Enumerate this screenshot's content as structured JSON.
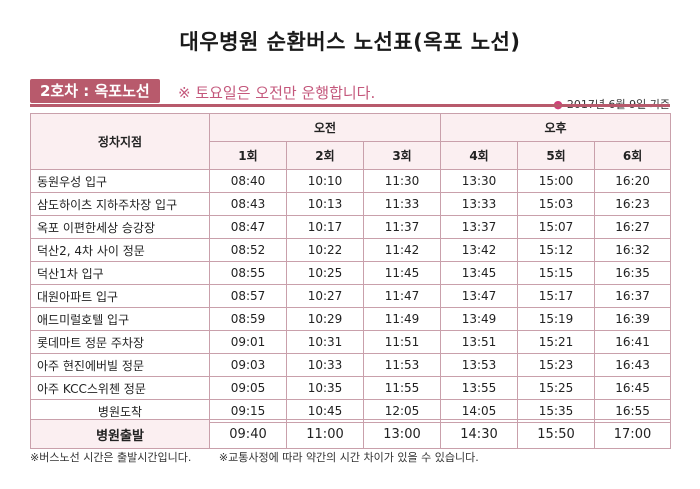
{
  "title": "대우병원 순환버스 노선표(옥포 노선)",
  "route_badge": "2호차 : 옥포노선",
  "notice": "※ 토요일은 오전만 운행합니다.",
  "basis_date": "2017년 6월 9일 기준",
  "table": {
    "stop_header": "정차지점",
    "am_label": "오전",
    "pm_label": "오후",
    "trips": [
      "1회",
      "2회",
      "3회",
      "4회",
      "5회",
      "6회"
    ],
    "rows": [
      {
        "stop": "동원우성 입구",
        "times": [
          "08:40",
          "10:10",
          "11:30",
          "13:30",
          "15:00",
          "16:20"
        ]
      },
      {
        "stop": "삼도하이츠 지하주차장 입구",
        "times": [
          "08:43",
          "10:13",
          "11:33",
          "13:33",
          "15:03",
          "16:23"
        ]
      },
      {
        "stop": "옥포 이편한세상 승강장",
        "times": [
          "08:47",
          "10:17",
          "11:37",
          "13:37",
          "15:07",
          "16:27"
        ]
      },
      {
        "stop": "덕산2, 4차 사이 정문",
        "times": [
          "08:52",
          "10:22",
          "11:42",
          "13:42",
          "15:12",
          "16:32"
        ]
      },
      {
        "stop": "덕산1차 입구",
        "times": [
          "08:55",
          "10:25",
          "11:45",
          "13:45",
          "15:15",
          "16:35"
        ]
      },
      {
        "stop": "대원아파트 입구",
        "times": [
          "08:57",
          "10:27",
          "11:47",
          "13:47",
          "15:17",
          "16:37"
        ]
      },
      {
        "stop": "애드미럴호텔 입구",
        "times": [
          "08:59",
          "10:29",
          "11:49",
          "13:49",
          "15:19",
          "16:39"
        ]
      },
      {
        "stop": "롯데마트 정문 주차장",
        "times": [
          "09:01",
          "10:31",
          "11:51",
          "13:51",
          "15:21",
          "16:41"
        ]
      },
      {
        "stop": "아주 현진에버빌 정문",
        "times": [
          "09:03",
          "10:33",
          "11:53",
          "13:53",
          "15:23",
          "16:43"
        ]
      },
      {
        "stop": "아주 KCC스위첸 정문",
        "times": [
          "09:05",
          "10:35",
          "11:55",
          "13:55",
          "15:25",
          "16:45"
        ]
      },
      {
        "stop": "병원도착",
        "times": [
          "09:15",
          "10:45",
          "12:05",
          "14:05",
          "15:35",
          "16:55"
        ]
      }
    ]
  },
  "departure": {
    "label": "병원출발",
    "times": [
      "09:40",
      "11:00",
      "13:00",
      "14:30",
      "15:50",
      "17:00"
    ]
  },
  "footnotes": {
    "note1": "※버스노선 시간은 출발시간입니다.",
    "note2": "※교통사정에 따라 약간의 시간 차이가 있을 수 있습니다."
  },
  "colors": {
    "accent": "#b85a6c",
    "notice": "#c4587c",
    "header_bg": "#fbeff1",
    "border": "#c9a0ab"
  }
}
